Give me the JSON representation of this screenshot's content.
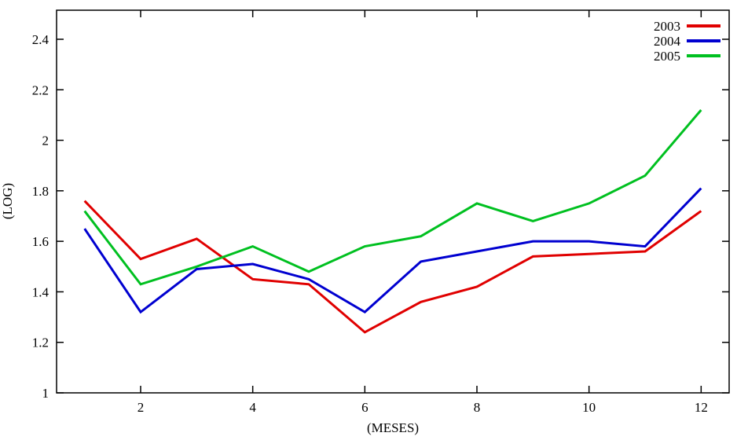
{
  "figure": {
    "background": "#ffffff",
    "border_color": "#000000",
    "text_color": "#000000"
  },
  "chart_data": {
    "type": "line",
    "title": "",
    "xlabel": "(MESES)",
    "ylabel": "(LOG)",
    "x": [
      1,
      2,
      3,
      4,
      5,
      6,
      7,
      8,
      9,
      10,
      11,
      12
    ],
    "series": [
      {
        "name": "2003",
        "color": "#e00000",
        "values": [
          1.76,
          1.53,
          1.61,
          1.45,
          1.43,
          1.24,
          1.36,
          1.42,
          1.54,
          1.55,
          1.56,
          1.72
        ]
      },
      {
        "name": "2004",
        "color": "#0000d0",
        "values": [
          1.65,
          1.32,
          1.49,
          1.51,
          1.45,
          1.32,
          1.52,
          1.56,
          1.6,
          1.6,
          1.58,
          1.81
        ]
      },
      {
        "name": "2005",
        "color": "#00c020",
        "values": [
          1.72,
          1.43,
          1.5,
          1.58,
          1.48,
          1.58,
          1.62,
          1.75,
          1.68,
          1.75,
          1.86,
          2.12
        ]
      }
    ],
    "x_ticks": [
      2,
      4,
      6,
      8,
      10,
      12
    ],
    "y_ticks": [
      1,
      1.2,
      1.4,
      1.6,
      1.8,
      2,
      2.2,
      2.4
    ],
    "xlim": [
      0.5,
      12.5
    ],
    "ylim": [
      1,
      2.515
    ],
    "grid": false,
    "tick_style": "inward-mirrored",
    "legend_position": "top-right"
  }
}
